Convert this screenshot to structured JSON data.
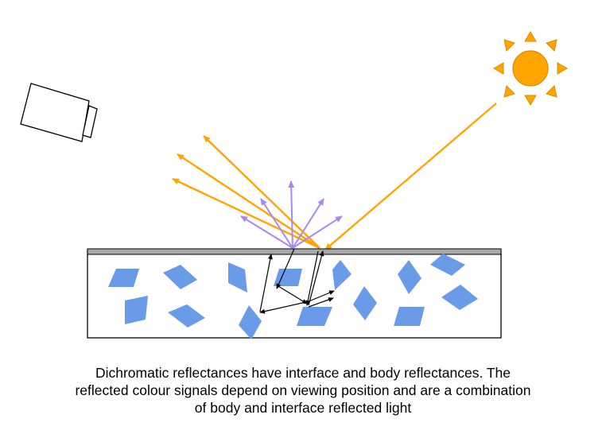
{
  "caption": {
    "line1": "Dichromatic reflectances have interface and body reflectances. The",
    "line2": "reflected colour signals depend on viewing position and are a combination",
    "line3": "of body and interface reflected light"
  },
  "colors": {
    "sun": "#ffa500",
    "light_ray": "#ffa500",
    "body_reflection": "#aa88ee",
    "pigment_particle": "#6a9be8",
    "interface_layer": "#a8a8a8",
    "internal_scatter": "#000000",
    "surface_outline": "#000000"
  },
  "icons": {
    "sun": "sun-icon",
    "camera": "camera-icon"
  }
}
